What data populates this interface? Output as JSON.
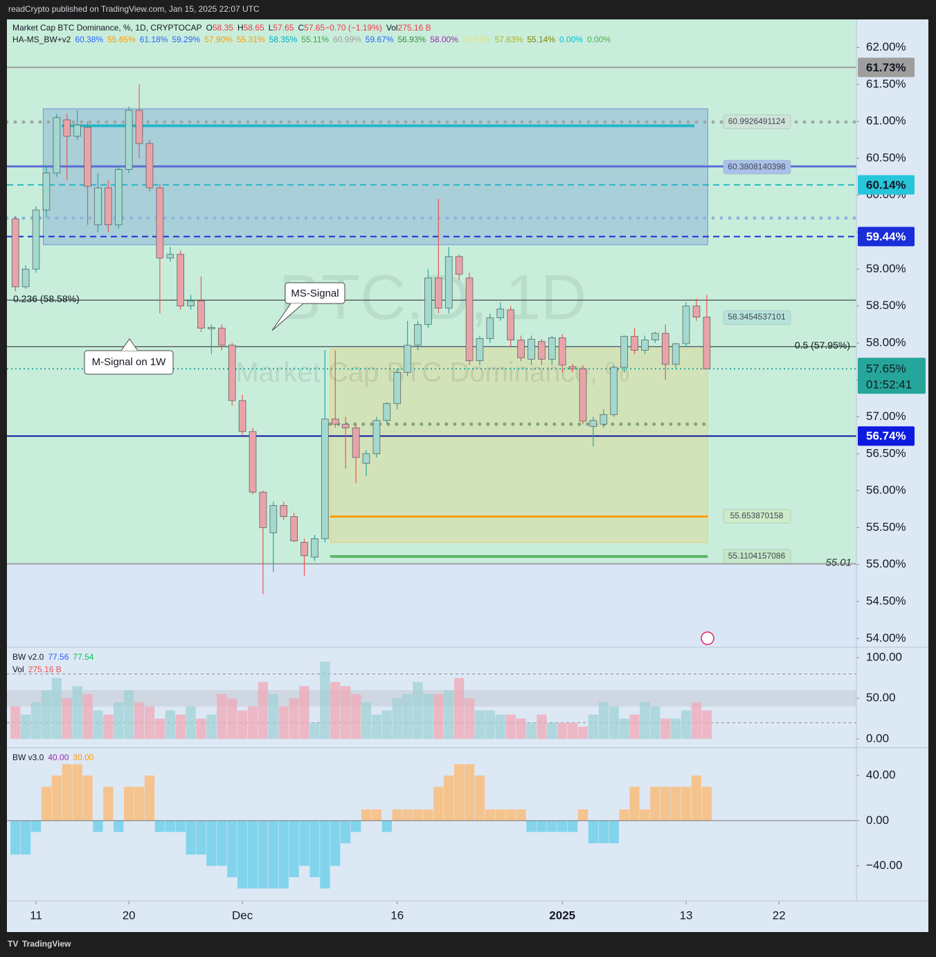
{
  "page": {
    "publisher": "readCrypto published on TradingView.com, Jan 15, 2025 22:07 UTC",
    "brand": "TradingView"
  },
  "chart_data": [
    {
      "type": "candlestick",
      "title": "Market Cap BTC Dominance, %, 1D, CRYPTOCAP",
      "ohlc_pieces": [
        {
          "label": "O",
          "value": "58.35"
        },
        {
          "label": "H",
          "value": "58.65"
        },
        {
          "label": "L",
          "value": "57.65"
        },
        {
          "label": "C",
          "value": "57.65"
        },
        {
          "label": "",
          "value": "−0.70 (−1.19%)"
        },
        {
          "label": "Vol",
          "value": "275.16 B"
        }
      ],
      "ohlc_value_color": "#f23645",
      "indicator": "HA-MS_BW+v2",
      "indicator_values": [
        {
          "text": "60.38%",
          "color": "#2962ff"
        },
        {
          "text": "55.65%",
          "color": "#ff9800"
        },
        {
          "text": "61.18%",
          "color": "#2962ff"
        },
        {
          "text": "59.29%",
          "color": "#2962ff"
        },
        {
          "text": "57.90%",
          "color": "#ff9800"
        },
        {
          "text": "55.31%",
          "color": "#ff9800"
        },
        {
          "text": "58.35%",
          "color": "#00acc1"
        },
        {
          "text": "55.11%",
          "color": "#43a047"
        },
        {
          "text": "60.99%",
          "color": "#9e9e9e"
        },
        {
          "text": "59.67%",
          "color": "#2962ff"
        },
        {
          "text": "56.93%",
          "color": "#388e3c"
        },
        {
          "text": "58.00%",
          "color": "#9c27b0"
        },
        {
          "text": "57.91%",
          "color": "#f0e060"
        },
        {
          "text": "57.63%",
          "color": "#b0b020"
        },
        {
          "text": "55.14%",
          "color": "#808000"
        },
        {
          "text": "0.00%",
          "color": "#00bcd4"
        },
        {
          "text": "0.00%",
          "color": "#4caf50"
        }
      ],
      "watermark": "BTC.D, 1D",
      "watermark_sub": "Market Cap BTC Dominance, %",
      "up_color": "#a3d9cf",
      "down_color": "#e9a3a8",
      "up_wick": "#26a69a",
      "down_wick": "#ef5350",
      "ohlc": [
        [
          59.68,
          59.72,
          58.7,
          58.76
        ],
        [
          58.76,
          59.05,
          58.73,
          59.0
        ],
        [
          59.0,
          59.85,
          58.95,
          59.8
        ],
        [
          59.8,
          60.4,
          59.7,
          60.3
        ],
        [
          60.3,
          61.1,
          60.25,
          61.05
        ],
        [
          61.02,
          61.1,
          60.2,
          60.8
        ],
        [
          60.8,
          61.15,
          60.75,
          60.95
        ],
        [
          60.92,
          61.0,
          59.6,
          60.12
        ],
        [
          59.6,
          60.3,
          59.5,
          60.1
        ],
        [
          60.1,
          60.2,
          59.5,
          59.6
        ],
        [
          59.6,
          60.4,
          59.55,
          60.35
        ],
        [
          60.35,
          61.2,
          60.3,
          61.15
        ],
        [
          61.15,
          61.5,
          60.5,
          60.7
        ],
        [
          60.7,
          60.75,
          60.05,
          60.1
        ],
        [
          60.1,
          60.15,
          58.4,
          59.15
        ],
        [
          59.15,
          59.3,
          59.1,
          59.2
        ],
        [
          59.2,
          59.25,
          58.45,
          58.5
        ],
        [
          58.5,
          58.65,
          58.45,
          58.57
        ],
        [
          58.57,
          58.9,
          58.15,
          58.2
        ],
        [
          58.19,
          58.25,
          57.85,
          58.21
        ],
        [
          58.2,
          58.25,
          57.9,
          57.97
        ],
        [
          57.97,
          58.0,
          57.15,
          57.22
        ],
        [
          57.22,
          57.3,
          56.75,
          56.8
        ],
        [
          56.8,
          56.85,
          55.95,
          55.98
        ],
        [
          55.98,
          56.0,
          54.6,
          55.5
        ],
        [
          55.43,
          55.85,
          54.9,
          55.8
        ],
        [
          55.8,
          55.85,
          55.6,
          55.65
        ],
        [
          55.65,
          55.7,
          55.3,
          55.32
        ],
        [
          55.3,
          55.35,
          54.85,
          55.12
        ],
        [
          55.1,
          55.4,
          55.05,
          55.35
        ],
        [
          55.35,
          57.9,
          55.3,
          56.97
        ],
        [
          56.97,
          57.9,
          56.85,
          56.9
        ],
        [
          56.9,
          57.0,
          56.3,
          56.85
        ],
        [
          56.85,
          56.9,
          56.1,
          56.45
        ],
        [
          56.37,
          56.55,
          56.2,
          56.5
        ],
        [
          56.5,
          57.0,
          56.45,
          56.95
        ],
        [
          56.95,
          57.2,
          56.9,
          57.18
        ],
        [
          57.18,
          57.65,
          57.1,
          57.6
        ],
        [
          57.6,
          58.3,
          57.55,
          57.97
        ],
        [
          57.97,
          58.3,
          57.9,
          58.25
        ],
        [
          58.25,
          59.0,
          58.2,
          58.88
        ],
        [
          58.88,
          59.95,
          58.4,
          58.47
        ],
        [
          58.47,
          59.3,
          58.4,
          59.17
        ],
        [
          59.17,
          59.2,
          58.85,
          58.93
        ],
        [
          58.88,
          58.95,
          57.7,
          57.76
        ],
        [
          57.76,
          58.1,
          57.7,
          58.06
        ],
        [
          58.06,
          58.4,
          58.0,
          58.34
        ],
        [
          58.34,
          58.55,
          58.3,
          58.46
        ],
        [
          58.45,
          58.5,
          57.95,
          58.04
        ],
        [
          58.04,
          58.1,
          57.75,
          57.8
        ],
        [
          57.78,
          58.1,
          57.7,
          58.05
        ],
        [
          58.02,
          58.05,
          57.7,
          57.78
        ],
        [
          57.78,
          58.1,
          57.7,
          58.07
        ],
        [
          58.07,
          58.12,
          57.6,
          57.7
        ],
        [
          57.68,
          57.72,
          57.6,
          57.65
        ],
        [
          57.65,
          57.7,
          56.9,
          56.94
        ],
        [
          56.87,
          57.0,
          56.6,
          56.95
        ],
        [
          56.9,
          57.1,
          56.85,
          57.03
        ],
        [
          57.03,
          57.7,
          57.0,
          57.67
        ],
        [
          57.67,
          58.1,
          57.6,
          58.09
        ],
        [
          58.09,
          58.2,
          57.85,
          57.9
        ],
        [
          57.9,
          58.1,
          57.85,
          58.04
        ],
        [
          58.04,
          58.15,
          58.0,
          58.13
        ],
        [
          58.13,
          58.25,
          57.5,
          57.71
        ],
        [
          57.71,
          58.0,
          57.65,
          57.99
        ],
        [
          57.99,
          58.55,
          57.95,
          58.5
        ],
        [
          58.5,
          58.6,
          58.3,
          58.35
        ],
        [
          58.35,
          58.65,
          57.65,
          57.65
        ]
      ],
      "xlim": [
        -0.82,
        81.5
      ],
      "xticks": [
        {
          "value": 2,
          "label": "11"
        },
        {
          "value": 11,
          "label": "20"
        },
        {
          "value": 22,
          "label": "Dec"
        },
        {
          "value": 37,
          "label": "16"
        },
        {
          "value": 53,
          "label": "2025"
        },
        {
          "value": 65,
          "label": "13"
        },
        {
          "value": 74,
          "label": "22"
        }
      ],
      "ylim": [
        53.89,
        62.38
      ],
      "yticks": [
        {
          "value": 54,
          "label": "54.00%"
        },
        {
          "value": 54.5,
          "label": "54.50%"
        },
        {
          "value": 55,
          "label": "55.00%"
        },
        {
          "value": 55.5,
          "label": "55.50%"
        },
        {
          "value": 56,
          "label": "56.00%"
        },
        {
          "value": 56.5,
          "label": "56.50%"
        },
        {
          "value": 57,
          "label": "57.00%"
        },
        {
          "value": 57.5,
          "label": "57.50%"
        },
        {
          "value": 58,
          "label": "58.00%"
        },
        {
          "value": 58.5,
          "label": "58.50%"
        },
        {
          "value": 59,
          "label": "59.00%"
        },
        {
          "value": 59.5,
          "label": "59.50%"
        },
        {
          "value": 60,
          "label": "60.00%"
        },
        {
          "value": 60.5,
          "label": "60.50%"
        },
        {
          "value": 61,
          "label": "61.00%"
        },
        {
          "value": 61.5,
          "label": "61.50%"
        },
        {
          "value": 62,
          "label": "62.00%"
        }
      ],
      "zone_split": 55.01,
      "zone_upper_color": "#c8eedb",
      "zone_lower_color": "#d9e6f5",
      "boxes": [
        {
          "top": 61.17,
          "bottom": 59.33,
          "start": 2.7,
          "end": 67.1,
          "color": "#6f95d6"
        },
        {
          "top": 57.92,
          "bottom": 55.3,
          "start": 30.5,
          "end": 67.1,
          "color": "#e8cf7a"
        }
      ],
      "levels": [
        {
          "value": 61.73,
          "color": "#9e9e9e",
          "style": "solid",
          "width": 2
        },
        {
          "value": 60.99,
          "color": "#a0a8a8",
          "style": "dots",
          "width": 5
        },
        {
          "value": 60.94,
          "color": "#26b5c6",
          "style": "solid",
          "width": 4,
          "start": 4.5,
          "end": 65.8
        },
        {
          "value": 60.39,
          "color": "#5c6bd6",
          "style": "solid",
          "width": 3
        },
        {
          "value": 60.14,
          "color": "#26b5c6",
          "style": "dashed",
          "width": 2
        },
        {
          "value": 59.69,
          "color": "#8fb5e0",
          "style": "dots",
          "width": 5
        },
        {
          "value": 59.44,
          "color": "#1a2ed8",
          "style": "dashed",
          "width": 2
        },
        {
          "value": 58.58,
          "color": "#222222",
          "style": "solid",
          "width": 1
        },
        {
          "value": 57.95,
          "color": "#222222",
          "style": "solid",
          "width": 1
        },
        {
          "value": 57.65,
          "color": "#26a69a",
          "style": "dotted",
          "width": 2
        },
        {
          "value": 56.9,
          "color": "#7fa27f",
          "style": "dots",
          "width": 5,
          "start": 30.5,
          "end": 67.1
        },
        {
          "value": 56.74,
          "color": "#0d1aa0",
          "style": "solid",
          "width": 2
        },
        {
          "value": 55.65,
          "color": "#ff9800",
          "style": "solid",
          "width": 3,
          "start": 30.5,
          "end": 67.1
        },
        {
          "value": 55.11,
          "color": "#5fb56a",
          "style": "solid",
          "width": 4,
          "start": 30.5,
          "end": 67.1
        },
        {
          "value": 55.01,
          "color": "#9e9e9e",
          "style": "solid",
          "width": 2
        }
      ],
      "fib_labels": [
        {
          "value": 58.58,
          "label": "0.236 (58.58%)"
        },
        {
          "value": 57.95,
          "label": "0.5 (57.95%)"
        }
      ],
      "price_labels": [
        {
          "value": 60.9926491124,
          "color": "#cfe3d9"
        },
        {
          "value": 60.3808140398,
          "color": "#a9c1ea"
        },
        {
          "value": 58.3454537101,
          "color": "#b6e4dc"
        },
        {
          "value": 55.653870158,
          "color": "#cdebc9"
        },
        {
          "value": 55.1104157086,
          "color": "#c4e8c8"
        }
      ],
      "line_tag": {
        "value": 55.01,
        "label": "55.01"
      },
      "badges": [
        {
          "value": 61.73,
          "label": "61.73%",
          "bg": "#9e9e9e",
          "color": "#131722"
        },
        {
          "value": 60.14,
          "label": "60.14%",
          "bg": "#26c6da",
          "color": "#131722"
        },
        {
          "value": 59.44,
          "label": "59.44%",
          "bg": "#1a2ed8",
          "color": "#ffffff"
        },
        {
          "value": 56.74,
          "label": "56.74%",
          "bg": "#0d1ae0",
          "color": "#ffffff"
        }
      ],
      "last_badge": {
        "value": 57.65,
        "label": "57.65%",
        "countdown": "01:52:41",
        "bg": "#26a69a",
        "color": "#131722"
      },
      "callouts": [
        "MS-Signal",
        "M-Signal on 1W"
      ]
    },
    {
      "type": "bar",
      "legend": [
        {
          "name": "BW v2.0",
          "values": [
            {
              "text": "77.56",
              "color": "#2962ff"
            },
            {
              "text": "77.54",
              "color": "#00c853"
            }
          ]
        },
        {
          "name": "Vol",
          "values": [
            {
              "text": "275.16 B",
              "color": "#ef5350"
            }
          ]
        }
      ],
      "values": [
        40,
        30,
        45,
        60,
        75,
        50,
        65,
        55,
        35,
        30,
        45,
        60,
        45,
        40,
        25,
        35,
        30,
        40,
        25,
        30,
        55,
        50,
        35,
        40,
        70,
        55,
        40,
        50,
        65,
        20,
        95,
        70,
        65,
        55,
        45,
        30,
        35,
        50,
        55,
        70,
        55,
        55,
        60,
        75,
        50,
        35,
        35,
        30,
        30,
        25,
        20,
        30,
        20,
        20,
        20,
        15,
        30,
        45,
        40,
        25,
        30,
        45,
        40,
        25,
        25,
        35,
        45,
        35
      ],
      "up_color": "#9fd2d6",
      "down_color": "#f0a8b6",
      "ylim": [
        -10,
        112
      ],
      "yticks": [
        {
          "value": 100,
          "label": "100.00"
        },
        {
          "value": 50,
          "label": "50.00"
        },
        {
          "value": 0,
          "label": "0.00"
        }
      ],
      "band": [
        40,
        60
      ],
      "guides": [
        80,
        20
      ]
    },
    {
      "type": "bar",
      "legend": [
        {
          "name": "BW v3.0",
          "values": [
            {
              "text": "40.00",
              "color": "#9c27b0"
            },
            {
              "text": "30.00",
              "color": "#ff9800"
            }
          ]
        }
      ],
      "values": [
        -30,
        -30,
        -10,
        30,
        40,
        50,
        50,
        40,
        -10,
        30,
        -10,
        30,
        30,
        40,
        -10,
        -10,
        -10,
        -30,
        -30,
        -40,
        -40,
        -50,
        -60,
        -60,
        -60,
        -60,
        -60,
        -50,
        -40,
        -50,
        -60,
        -40,
        -20,
        -10,
        10,
        10,
        -10,
        10,
        10,
        10,
        10,
        30,
        40,
        50,
        50,
        40,
        10,
        10,
        10,
        10,
        -10,
        -10,
        -10,
        -10,
        -10,
        10,
        -20,
        -20,
        -20,
        10,
        30,
        10,
        30,
        30,
        30,
        30,
        40,
        30
      ],
      "up_color": "#f5c48e",
      "down_color": "#82d4ec",
      "ylim": [
        -71,
        64
      ],
      "yticks": [
        {
          "value": 40,
          "label": "40.00"
        },
        {
          "value": 0,
          "label": "0.00"
        },
        {
          "value": -40,
          "label": "−40.00"
        }
      ]
    }
  ]
}
